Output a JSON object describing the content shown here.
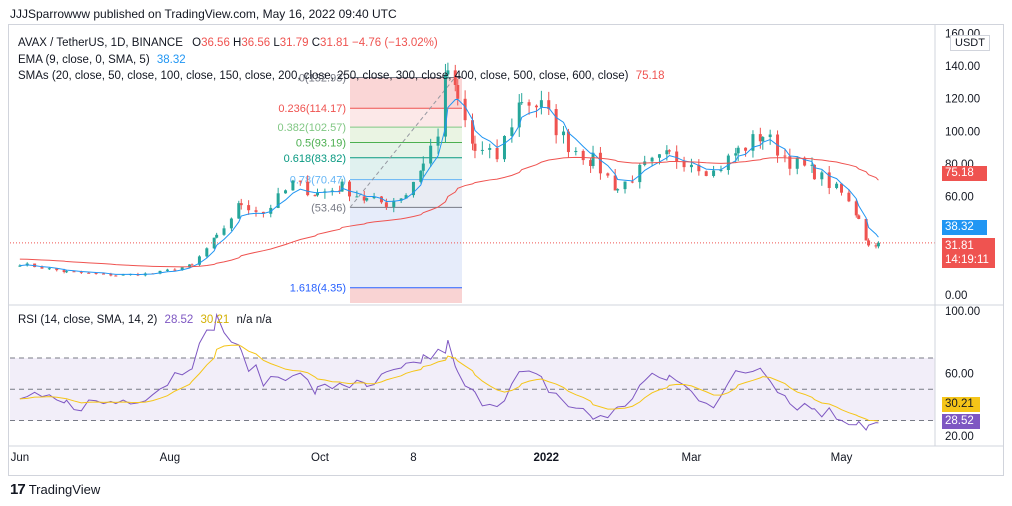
{
  "header": {
    "text": "JJJSparrowww published on TradingView.com, May 16, 2022 09:40 UTC"
  },
  "legend": {
    "symbol": "AVAX / TetherUS, 1D, BINANCE",
    "o_label": "O",
    "o_value": "36.56",
    "h_label": "H",
    "h_value": "36.56",
    "l_label": "L",
    "l_value": "31.79",
    "c_label": "C",
    "c_value": "31.81",
    "change": "−4.76 (−13.02%)",
    "ema_label": "EMA (9, close, 0, SMA, 5)",
    "ema_value": "38.32",
    "sma_label": "SMAs (20, close, 50, close, 100, close, 150, close, 200, close, 250, close, 300, close, 400, close, 500, close, 600, close)",
    "sma_value": "75.18"
  },
  "currency_button": "USDT",
  "price_tags": {
    "sma": "75.18",
    "ema": "38.32",
    "last": "31.81",
    "countdown": "14:19:11",
    "rsi": "28.52",
    "rsi_ma": "30.21"
  },
  "rsi_legend": {
    "label": "RSI (14, close, SMA, 14, 2)",
    "value": "28.52",
    "ma_value": "30.21",
    "extra": "n/a  n/a"
  },
  "footer": {
    "brand": "TradingView"
  },
  "colors": {
    "up": "#26a69a",
    "down": "#ef5350",
    "ema": "#2196f3",
    "sma": "#ef5350",
    "rsi": "#7e57c2",
    "rsi_ma": "#f5c518",
    "text": "#131722"
  },
  "chart_data": [
    {
      "type": "candlestick",
      "symbol": "AVAX / TetherUS",
      "x_tick_labels": [
        "Jun",
        "Aug",
        "Oct",
        "8",
        "2022",
        "Mar",
        "May"
      ],
      "y_tick_labels": [
        "0.00",
        "20.00",
        "40.00",
        "60.00",
        "80.00",
        "100.00",
        "120.00",
        "140.00",
        "160.00"
      ],
      "ylim": [
        -5,
        162
      ],
      "close_series": [
        {
          "date": "2021-06-01",
          "close": 19
        },
        {
          "date": "2021-06-20",
          "close": 14
        },
        {
          "date": "2021-07-10",
          "close": 12
        },
        {
          "date": "2021-07-25",
          "close": 13
        },
        {
          "date": "2021-08-10",
          "close": 18
        },
        {
          "date": "2021-08-20",
          "close": 35
        },
        {
          "date": "2021-08-30",
          "close": 56
        },
        {
          "date": "2021-09-08",
          "close": 50
        },
        {
          "date": "2021-09-20",
          "close": 68
        },
        {
          "date": "2021-09-30",
          "close": 62
        },
        {
          "date": "2021-10-10",
          "close": 66
        },
        {
          "date": "2021-10-20",
          "close": 58
        },
        {
          "date": "2021-10-28",
          "close": 56
        },
        {
          "date": "2021-11-05",
          "close": 62
        },
        {
          "date": "2021-11-12",
          "close": 80
        },
        {
          "date": "2021-11-18",
          "close": 100
        },
        {
          "date": "2021-11-22",
          "close": 138
        },
        {
          "date": "2021-11-26",
          "close": 118
        },
        {
          "date": "2021-12-03",
          "close": 88
        },
        {
          "date": "2021-12-12",
          "close": 84
        },
        {
          "date": "2021-12-22",
          "close": 120
        },
        {
          "date": "2021-12-30",
          "close": 115
        },
        {
          "date": "2022-01-10",
          "close": 92
        },
        {
          "date": "2022-01-20",
          "close": 82
        },
        {
          "date": "2022-01-30",
          "close": 65
        },
        {
          "date": "2022-02-10",
          "close": 78
        },
        {
          "date": "2022-02-20",
          "close": 85
        },
        {
          "date": "2022-03-01",
          "close": 82
        },
        {
          "date": "2022-03-10",
          "close": 75
        },
        {
          "date": "2022-03-20",
          "close": 88
        },
        {
          "date": "2022-03-30",
          "close": 98
        },
        {
          "date": "2022-04-10",
          "close": 82
        },
        {
          "date": "2022-04-20",
          "close": 75
        },
        {
          "date": "2022-05-01",
          "close": 62
        },
        {
          "date": "2022-05-08",
          "close": 48
        },
        {
          "date": "2022-05-12",
          "close": 30
        },
        {
          "date": "2022-05-16",
          "close": 31.81
        }
      ],
      "fib_levels": [
        {
          "label": "0(132.93)",
          "price": 132.93
        },
        {
          "label": "0.236(114.17)",
          "price": 114.17
        },
        {
          "label": "0.382(102.57)",
          "price": 102.57
        },
        {
          "label": "0.5(93.19)",
          "price": 93.19
        },
        {
          "label": "0.618(83.82)",
          "price": 83.82
        },
        {
          "label": "0.786(70.47)",
          "price": 70.47
        },
        {
          "label": "1(53.46)",
          "price": 53.46
        },
        {
          "label": "1.618(4.35)",
          "price": 4.35
        }
      ],
      "fib_label_visible": [
        "0(132.93)",
        "0.236(114.17)",
        "0.382(102.57)",
        "0.5(93.19)",
        "0.618(83.82)",
        "0.78(70.47)",
        "(53.46)",
        "1.618(4.35)"
      ]
    },
    {
      "type": "line",
      "name": "RSI",
      "y_tick_labels": [
        "20.00",
        "60.00",
        "100.00"
      ],
      "ylim": [
        15,
        102
      ],
      "bands": [
        30,
        50,
        70
      ],
      "rsi_series": [
        {
          "date": "2021-06-01",
          "value": 45
        },
        {
          "date": "2021-06-20",
          "value": 40
        },
        {
          "date": "2021-07-10",
          "value": 42
        },
        {
          "date": "2021-07-25",
          "value": 48
        },
        {
          "date": "2021-08-10",
          "value": 68
        },
        {
          "date": "2021-08-20",
          "value": 95
        },
        {
          "date": "2021-08-30",
          "value": 72
        },
        {
          "date": "2021-09-08",
          "value": 55
        },
        {
          "date": "2021-09-20",
          "value": 62
        },
        {
          "date": "2021-09-30",
          "value": 48
        },
        {
          "date": "2021-10-10",
          "value": 55
        },
        {
          "date": "2021-10-20",
          "value": 50
        },
        {
          "date": "2021-10-28",
          "value": 58
        },
        {
          "date": "2021-11-05",
          "value": 62
        },
        {
          "date": "2021-11-12",
          "value": 70
        },
        {
          "date": "2021-11-18",
          "value": 72
        },
        {
          "date": "2021-11-22",
          "value": 78
        },
        {
          "date": "2021-11-26",
          "value": 58
        },
        {
          "date": "2021-12-03",
          "value": 45
        },
        {
          "date": "2021-12-12",
          "value": 42
        },
        {
          "date": "2021-12-22",
          "value": 60
        },
        {
          "date": "2021-12-30",
          "value": 55
        },
        {
          "date": "2022-01-10",
          "value": 40
        },
        {
          "date": "2022-01-20",
          "value": 32
        },
        {
          "date": "2022-01-30",
          "value": 36
        },
        {
          "date": "2022-02-10",
          "value": 55
        },
        {
          "date": "2022-02-20",
          "value": 58
        },
        {
          "date": "2022-03-01",
          "value": 48
        },
        {
          "date": "2022-03-10",
          "value": 42
        },
        {
          "date": "2022-03-20",
          "value": 60
        },
        {
          "date": "2022-03-30",
          "value": 65
        },
        {
          "date": "2022-04-10",
          "value": 42
        },
        {
          "date": "2022-04-20",
          "value": 38
        },
        {
          "date": "2022-05-01",
          "value": 32
        },
        {
          "date": "2022-05-08",
          "value": 30
        },
        {
          "date": "2022-05-12",
          "value": 26
        },
        {
          "date": "2022-05-16",
          "value": 28.52
        }
      ]
    }
  ]
}
